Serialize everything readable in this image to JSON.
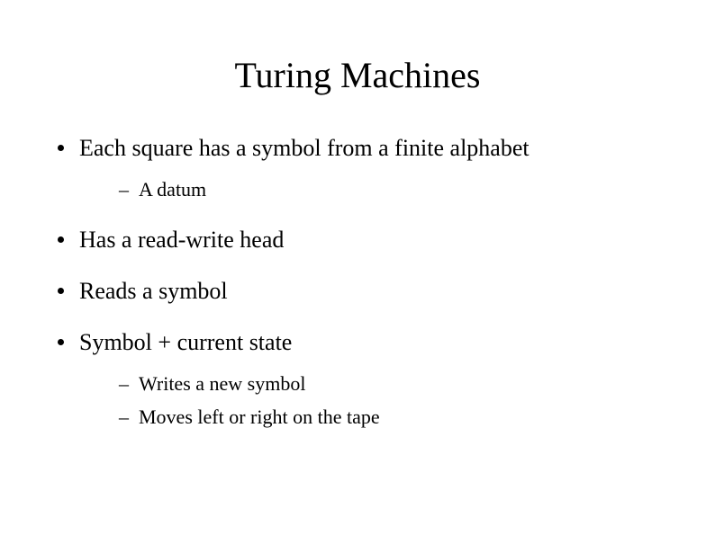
{
  "title": "Turing Machines",
  "bullets": {
    "b0": {
      "text": "Each square has a symbol from a finite alphabet",
      "sub": [
        "A datum"
      ]
    },
    "b1": {
      "text": "Has a read-write head"
    },
    "b2": {
      "text": "Reads a symbol"
    },
    "b3": {
      "text": "Symbol + current state",
      "sub": [
        "Writes a new symbol",
        "Moves left or right on the tape"
      ]
    }
  },
  "style": {
    "title_fontsize": 40,
    "bullet_fontsize": 26,
    "sub_fontsize": 22,
    "text_color": "#000000",
    "background_color": "#ffffff",
    "font_family": "Times New Roman"
  }
}
